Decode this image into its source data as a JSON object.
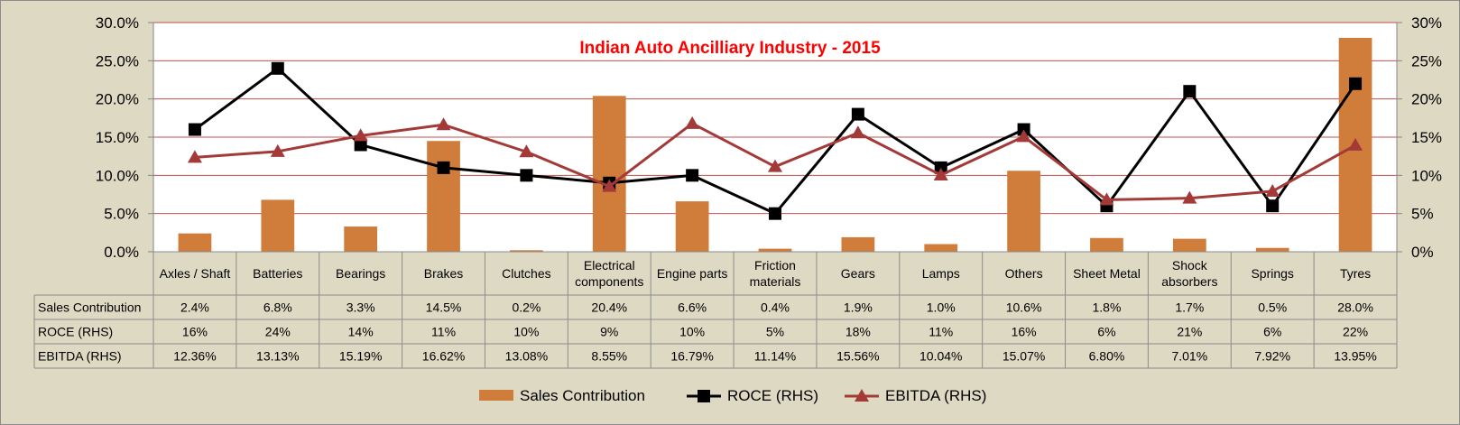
{
  "chart_data": {
    "type": "bar",
    "title": "Indian Auto Ancilliary Industry - 2015",
    "title_color": "#ff0000",
    "categories": [
      [
        "Axles / Shaft"
      ],
      [
        "Batteries"
      ],
      [
        "Bearings"
      ],
      [
        "Brakes"
      ],
      [
        "Clutches"
      ],
      [
        "Electrical",
        "components"
      ],
      [
        "Engine parts"
      ],
      [
        "Friction",
        "materials"
      ],
      [
        "Gears"
      ],
      [
        "Lamps"
      ],
      [
        "Others"
      ],
      [
        "Sheet Metal"
      ],
      [
        "Shock",
        "absorbers"
      ],
      [
        "Springs"
      ],
      [
        "Tyres"
      ]
    ],
    "y_left": {
      "ticks": [
        "0.0%",
        "5.0%",
        "10.0%",
        "15.0%",
        "20.0%",
        "25.0%",
        "30.0%"
      ],
      "ylim": [
        0,
        30
      ]
    },
    "y_right": {
      "ticks": [
        "0%",
        "5%",
        "10%",
        "15%",
        "20%",
        "25%",
        "30%"
      ],
      "ylim": [
        0,
        30
      ]
    },
    "grid": true,
    "legend_position": "bottom",
    "series": [
      {
        "name": "Sales Contribution",
        "kind": "bar",
        "axis": "left",
        "color": "#d07d3b",
        "values": [
          2.4,
          6.8,
          3.3,
          14.5,
          0.2,
          20.4,
          6.6,
          0.4,
          1.9,
          1.0,
          10.6,
          1.8,
          1.7,
          0.5,
          28.0
        ],
        "labels": [
          "2.4%",
          "6.8%",
          "3.3%",
          "14.5%",
          "0.2%",
          "20.4%",
          "6.6%",
          "0.4%",
          "1.9%",
          "1.0%",
          "10.6%",
          "1.8%",
          "1.7%",
          "0.5%",
          "28.0%"
        ]
      },
      {
        "name": "ROCE (RHS)",
        "kind": "line",
        "axis": "right",
        "color": "#000000",
        "marker": "square",
        "values": [
          16,
          24,
          14,
          11,
          10,
          9,
          10,
          5,
          18,
          11,
          16,
          6,
          21,
          6,
          22
        ],
        "labels": [
          "16%",
          "24%",
          "14%",
          "11%",
          "10%",
          "9%",
          "10%",
          "5%",
          "18%",
          "11%",
          "16%",
          "6%",
          "21%",
          "6%",
          "22%"
        ]
      },
      {
        "name": "EBITDA (RHS)",
        "kind": "line",
        "axis": "right",
        "color": "#a33a37",
        "marker": "triangle",
        "values": [
          12.36,
          13.13,
          15.19,
          16.62,
          13.08,
          8.55,
          16.79,
          11.14,
          15.56,
          10.04,
          15.07,
          6.8,
          7.01,
          7.92,
          13.95
        ],
        "labels": [
          "12.36%",
          "13.13%",
          "15.19%",
          "16.62%",
          "13.08%",
          "8.55%",
          "16.79%",
          "11.14%",
          "15.56%",
          "10.04%",
          "15.07%",
          "6.80%",
          "7.01%",
          "7.92%",
          "13.95%"
        ]
      }
    ]
  }
}
